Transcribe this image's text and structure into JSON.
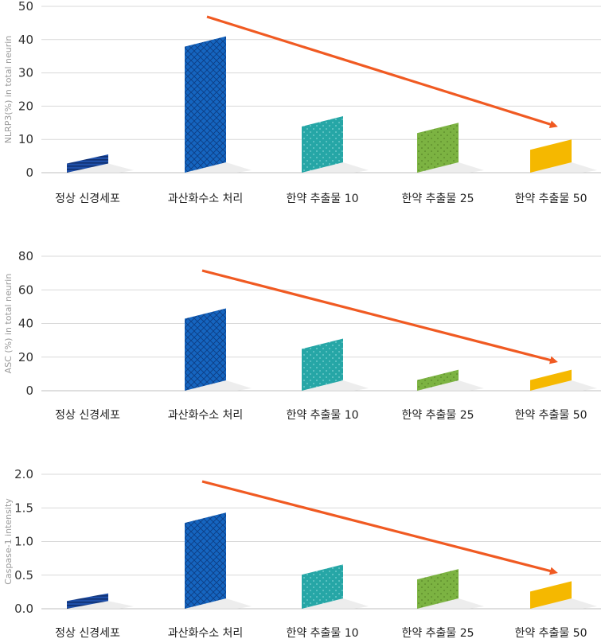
{
  "chart_data": [
    {
      "type": "bar",
      "ylabel": "NLRP3(%) in total neurin",
      "categories": [
        "정상 신경세포",
        "과산화수소 처리",
        "한약 추출물 10",
        "한약 추출물 25",
        "한약 추출물 50"
      ],
      "values": [
        5.5,
        41,
        17,
        15,
        10
      ],
      "ylim": [
        0,
        50
      ],
      "yticks": [
        "0",
        "10",
        "20",
        "30",
        "40",
        "50"
      ],
      "grid": true,
      "trend_arrow": "decreasing, from 과산화수소 처리 to 한약 추출물 50"
    },
    {
      "type": "bar",
      "ylabel": "ASC (%) in total neurin",
      "categories": [
        "정상 신경세포",
        "과산화수소 처리",
        "한약 추출물 10",
        "한약 추출물 25",
        "한약 추출물 50"
      ],
      "values": [
        0,
        49,
        31,
        12.5,
        12.5
      ],
      "ylim": [
        0,
        80
      ],
      "yticks": [
        "0",
        "20",
        "40",
        "60",
        "80"
      ],
      "grid": true,
      "trend_arrow": "decreasing, from 과산화수소 처리 to 한약 추출물 50"
    },
    {
      "type": "bar",
      "ylabel": "Caspase-1 intensity",
      "categories": [
        "정상 신경세포",
        "과산화수소 처리",
        "한약 추출물 10",
        "한약 추출물 25",
        "한약 추출물 50"
      ],
      "values": [
        0.23,
        1.43,
        0.66,
        0.59,
        0.41
      ],
      "ylim": [
        0,
        2.0
      ],
      "yticks": [
        "0.0",
        "0.5",
        "1.0",
        "1.5",
        "2.0"
      ],
      "grid": true,
      "trend_arrow": "decreasing, from 과산화수소 처리 to 한약 추출물 50"
    }
  ],
  "colors": {
    "bar_fills": [
      "#1f4fa8",
      "#1565c0",
      "#26a6a6",
      "#7cb342",
      "#f5b800"
    ],
    "bar_dark": [
      "#103070",
      "#0d3f86",
      "#137a7a",
      "#4f7a22",
      "#c98d00"
    ],
    "arrow": "#f05a22"
  }
}
